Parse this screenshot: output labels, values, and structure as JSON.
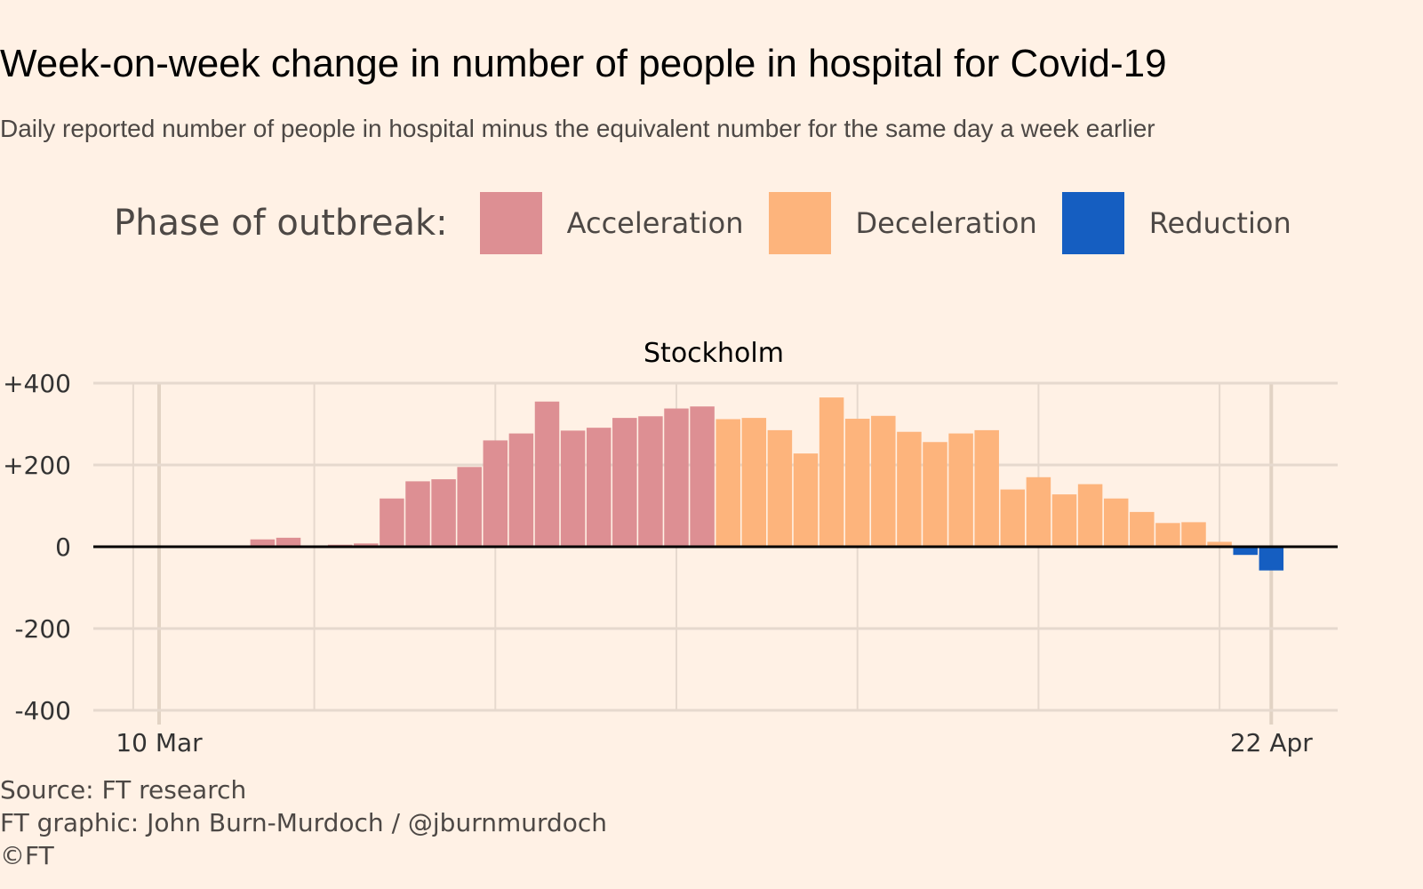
{
  "title": "Week-on-week change in number of people in hospital for Covid-19",
  "subtitle": "Daily reported number of people in hospital minus the equivalent number for the same day a week earlier",
  "legend": {
    "title": "Phase of outbreak:",
    "items": [
      {
        "label": "Acceleration",
        "color": "#dd8f93"
      },
      {
        "label": "Deceleration",
        "color": "#fdb47c"
      },
      {
        "label": "Reduction",
        "color": "#155ec1"
      }
    ]
  },
  "footer": {
    "source": "Source: FT research",
    "graphic": "FT graphic: John Burn-Murdoch / @jburnmurdoch",
    "copyright": "©FT"
  },
  "chart_data": {
    "type": "bar",
    "title": "Stockholm",
    "xlabel": "",
    "ylabel": "",
    "ylim": [
      -400,
      400
    ],
    "yticks": [
      400,
      200,
      0,
      -200,
      -400
    ],
    "ytick_labels": [
      "+400",
      "+200",
      "0",
      "-200",
      "-400"
    ],
    "xtick_labels": [
      "10 Mar",
      "22 Apr"
    ],
    "x_start": "10 Mar",
    "grid": true,
    "values": [
      2,
      2,
      2,
      2,
      18,
      22,
      0,
      5,
      8,
      118,
      160,
      165,
      195,
      260,
      277,
      355,
      284,
      291,
      315,
      319,
      338,
      343,
      312,
      315,
      285,
      228,
      365,
      313,
      320,
      281,
      256,
      277,
      285,
      140,
      170,
      128,
      153,
      118,
      85,
      58,
      60,
      12,
      -20,
      -58
    ],
    "phases": [
      "a",
      "a",
      "a",
      "a",
      "a",
      "a",
      "a",
      "a",
      "a",
      "a",
      "a",
      "a",
      "a",
      "a",
      "a",
      "a",
      "a",
      "a",
      "a",
      "a",
      "a",
      "a",
      "d",
      "d",
      "d",
      "d",
      "d",
      "d",
      "d",
      "d",
      "d",
      "d",
      "d",
      "d",
      "d",
      "d",
      "d",
      "d",
      "d",
      "d",
      "d",
      "d",
      "r",
      "r"
    ]
  }
}
